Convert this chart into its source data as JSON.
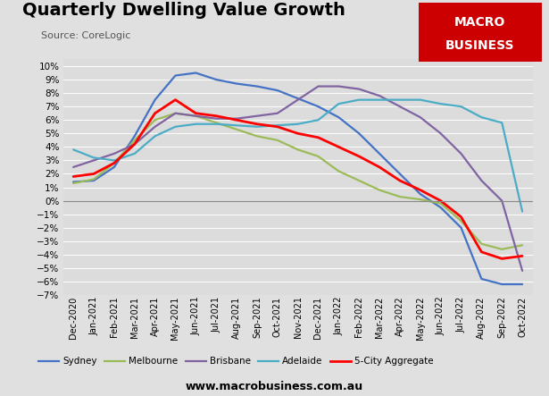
{
  "title": "Quarterly Dwelling Value Growth",
  "source": "Source: CoreLogic",
  "website": "www.macrobusiness.com.au",
  "background_color": "#e0e0e0",
  "plot_bg_color": "#dcdcdc",
  "ylim": [
    -0.07,
    0.105
  ],
  "yticks": [
    -0.07,
    -0.06,
    -0.05,
    -0.04,
    -0.03,
    -0.02,
    -0.01,
    0.0,
    0.01,
    0.02,
    0.03,
    0.04,
    0.05,
    0.06,
    0.07,
    0.08,
    0.09,
    0.1
  ],
  "dates": [
    "Dec-2020",
    "Jan-2021",
    "Feb-2021",
    "Mar-2021",
    "Apr-2021",
    "May-2021",
    "Jun-2021",
    "Jul-2021",
    "Aug-2021",
    "Sep-2021",
    "Oct-2021",
    "Nov-2021",
    "Dec-2021",
    "Jan-2022",
    "Feb-2022",
    "Mar-2022",
    "Apr-2022",
    "May-2022",
    "Jun-2022",
    "Jul-2022",
    "Aug-2022",
    "Sep-2022",
    "Oct-2022"
  ],
  "series": {
    "Sydney": {
      "color": "#4472c4",
      "values": [
        1.4,
        1.5,
        2.5,
        4.8,
        7.5,
        9.3,
        9.5,
        9.0,
        8.7,
        8.5,
        8.2,
        7.6,
        7.0,
        6.2,
        5.0,
        3.5,
        2.0,
        0.5,
        -0.5,
        -2.0,
        -5.8,
        -6.2,
        -6.2
      ]
    },
    "Melbourne": {
      "color": "#9bbb59",
      "values": [
        1.3,
        1.6,
        2.8,
        4.5,
        6.0,
        6.5,
        6.3,
        5.8,
        5.3,
        4.8,
        4.5,
        3.8,
        3.3,
        2.2,
        1.5,
        0.8,
        0.3,
        0.1,
        -0.2,
        -1.5,
        -3.2,
        -3.6,
        -3.3
      ]
    },
    "Brisbane": {
      "color": "#8064a2",
      "values": [
        2.5,
        3.0,
        3.5,
        4.2,
        5.5,
        6.5,
        6.3,
        6.1,
        6.1,
        6.3,
        6.5,
        7.5,
        8.5,
        8.5,
        8.3,
        7.8,
        7.0,
        6.2,
        5.0,
        3.5,
        1.5,
        0.0,
        -5.2
      ]
    },
    "Adelaide": {
      "color": "#4bacc6",
      "values": [
        3.8,
        3.2,
        3.0,
        3.5,
        4.8,
        5.5,
        5.7,
        5.7,
        5.6,
        5.5,
        5.6,
        5.7,
        6.0,
        7.2,
        7.5,
        7.5,
        7.5,
        7.5,
        7.2,
        7.0,
        6.2,
        5.8,
        -0.8
      ]
    },
    "5-City Aggregate": {
      "color": "#ff0000",
      "values": [
        1.8,
        2.0,
        2.8,
        4.2,
        6.5,
        7.5,
        6.5,
        6.3,
        6.0,
        5.7,
        5.5,
        5.0,
        4.7,
        4.0,
        3.3,
        2.5,
        1.5,
        0.8,
        0.0,
        -1.2,
        -3.8,
        -4.3,
        -4.1
      ]
    }
  }
}
